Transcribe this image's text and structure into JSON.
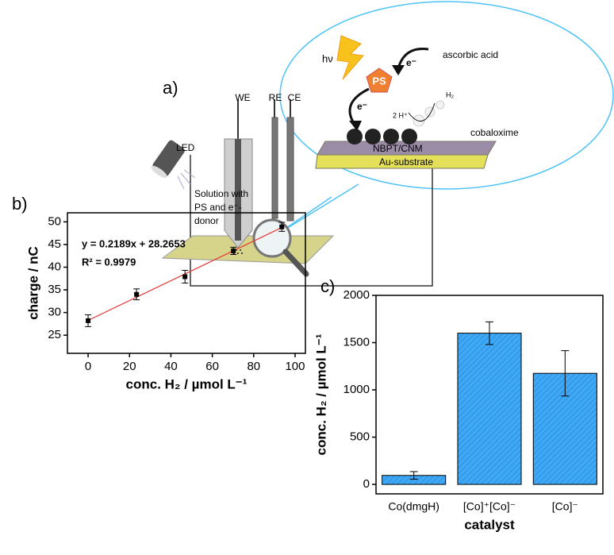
{
  "diagram": {
    "panel": "a)",
    "we": "WE",
    "re": "RE",
    "ce": "CE",
    "led": "LED",
    "solution": [
      "Solution with",
      "PS and e⁻-",
      "donor"
    ],
    "light": "hν",
    "ps": "PS",
    "electron_in": "e⁻",
    "donor": "ascorbic acid",
    "electron_out": "e⁻",
    "protons": "2 H⁺",
    "hydrogen": "H₂",
    "catalyst": "cobaloxime",
    "layer": "NBPT/CNM",
    "substrate": "Au-substrate"
  },
  "chart_data": [
    {
      "type": "scatter",
      "label": "b)",
      "x_label": "conc. H₂ / µmol L⁻¹",
      "y_label": "charge / nC",
      "x": [
        0,
        23.4,
        46.8,
        70.2,
        93.6
      ],
      "values": [
        28.2,
        34.0,
        37.9,
        43.6,
        48.9
      ],
      "errors": [
        1.3,
        1.2,
        1.4,
        0.8,
        1.0
      ],
      "color": "#000000",
      "fit": {
        "slope": 0.2189,
        "intercept": 28.2653,
        "color": "#e53935",
        "label": "y = 0.2189x + 28.2653"
      },
      "annotation": "R² = 0.9979",
      "xlim": [
        -10,
        105
      ],
      "xticks": [
        0,
        20,
        40,
        60,
        80,
        100
      ],
      "ylim": [
        21,
        52
      ],
      "yticks": [
        25,
        30,
        35,
        40,
        45,
        50
      ]
    },
    {
      "type": "bar",
      "label": "c)",
      "x_label": "catalyst",
      "y_label": "conc. H₂ / µmol L⁻¹",
      "categories": [
        "Co(dmgH)",
        "[Co]⁺[Co]⁻",
        "[Co]⁻"
      ],
      "values": [
        95,
        1600,
        1175
      ],
      "errors": [
        40,
        120,
        240
      ],
      "color": "#3fa9f5",
      "ylim": [
        -100,
        2000
      ],
      "yticks": [
        0,
        500,
        1000,
        1500,
        2000
      ]
    }
  ]
}
